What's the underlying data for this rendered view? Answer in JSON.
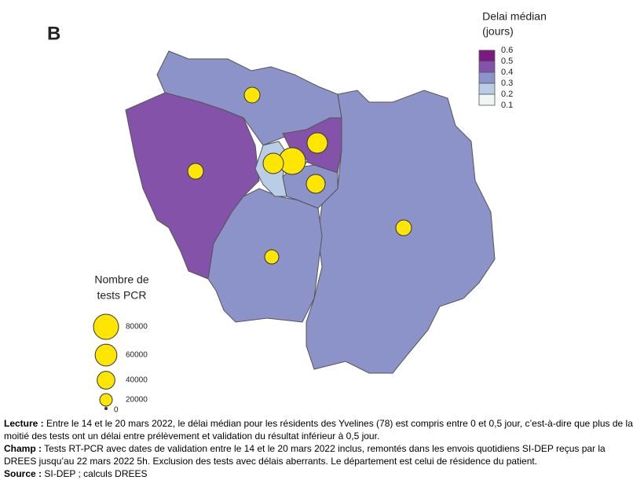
{
  "panel_label": "B",
  "color_legend": {
    "title": [
      "Delai médian",
      "(jours)"
    ],
    "ticks": [
      0.6,
      0.5,
      0.4,
      0.3,
      0.2,
      0.1
    ],
    "colors": [
      "#7b1a82",
      "#8452a8",
      "#8b93c8",
      "#b9cde6",
      "#eef6f6"
    ]
  },
  "size_legend": {
    "title": [
      "Nombre de",
      "tests PCR"
    ],
    "values": [
      80000,
      60000,
      40000,
      20000,
      0
    ],
    "color": "#ffe600"
  },
  "notes": [
    {
      "label": "Lecture :",
      "text": "Entre le 14 et le 20 mars 2022, le délai médian pour les résidents des Yvelines (78) est compris entre 0 et 0,5 jour, c’est-à-dire que plus de la moitié des tests ont un délai entre prélèvement et validation du résultat inférieur à 0,5 jour."
    },
    {
      "label": "Champ :",
      "text": "Tests RT-PCR avec dates de validation entre le 14 et le 20 mars 2022 inclus, remontés dans les envois quotidiens SI-DEP reçus par la DREES jusqu’au 22 mars 2022 5h. Exclusion des tests avec délais aberrants. Le département est celui de résidence du patient."
    },
    {
      "label": "Source :",
      "text": "SI-DEP ; calculs DREES"
    }
  ]
}
